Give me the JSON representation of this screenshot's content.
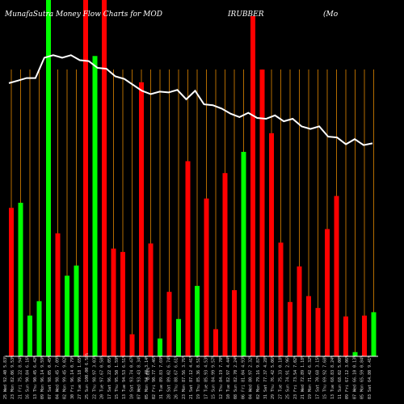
{
  "title_parts": [
    "MunafaSutra  Money Flow  Charts for MOD",
    "IRUBBER",
    "(Mo"
  ],
  "colors": {
    "background": "#000000",
    "up": "#00ff00",
    "down": "#ff0000",
    "grid": "#b36b00",
    "line": "#ffffff",
    "baseline": "#ffffff"
  },
  "chart_data": {
    "type": "bar",
    "title": "MunafaSutra  Money Flow  Charts for MOD IRUBBER (Mo",
    "x_tick_labels": [
      "25 Wed 92.40 5.83%",
      "23 Mon 82.06 9.53%",
      "21 Fri 75.22 8.94%",
      "16 Sun 90.84 6.16%",
      "13 Thu 90.45 6.42%",
      "09 Mon 96.14 9.59%",
      "07 Sat 98.05 0.45%",
      "04 Wed 98.45 7.09%",
      "02 Mon 99.45 9.02%",
      "30 Fri 96.14 0.79%",
      "27 Tue 99.18 1.65%",
      "25 Sun 100.00 6.58%",
      "22 Thu 98.97 3.03%",
      "20 Tue 97.67 0.58%",
      "17 Sat 96.22 0.05%",
      "15 Thu 95.50 1.59%",
      "13 Tue 94.53 6.51%",
      "10 Sat 93.74 0.47%",
      "07 Wed 93.43 8.34%",
      "05 Mon 94.48 3.14%",
      "02 Fri 90.77 7.46%",
      "31 Tue 89.83 7.69%",
      "28 Sat 89.02 6.74%",
      "26 Thu 88.67 6.61%",
      "23 Mon 87.56 3.76%",
      "21 Sat 87.12 4.41%",
      "19 Thu 85.36 8.51%",
      "17 Tue 85.93 4.53%",
      "15 Sun 84.99 9.57%",
      "12 Thu 84.19 7.70%",
      "10 Tue 82.97 4.44%",
      "08 Sun 82.70 2.24%",
      "06 Fri 81.04 4.93%",
      "04 Wed 80.97 2.32%",
      "02 Mon 79.16 9.87%",
      "31 Sat 77.37 4.28%",
      "29 Thu 76.42 5.06%",
      "27 Tue 75.33 0.18%",
      "25 Sun 74.91 2.96%",
      "23 Fri 73.54 7.02%",
      "21 Wed 72.89 1.18%",
      "19 Mon 71.42 6.32%",
      "17 Sat 70.68 3.15%",
      "15 Thu 69.92 7.68%",
      "13 Tue 68.83 8.24%",
      "11 Sun 68.02 5.00%",
      "09 Fri 67.12 3.06%",
      "07 Wed 66.10 0.13%",
      "05 Mon 65.59 0.84%",
      "03 Sat 64.80 9.41%"
    ],
    "extra_tick_label": "0.61%",
    "bars": [
      {
        "value": 175,
        "color": "red"
      },
      {
        "value": 181,
        "color": "green"
      },
      {
        "value": 48,
        "color": "green"
      },
      {
        "value": 65,
        "color": "green"
      },
      {
        "value": 420,
        "color": "green"
      },
      {
        "value": 145,
        "color": "red"
      },
      {
        "value": 95,
        "color": "green"
      },
      {
        "value": 107,
        "color": "green"
      },
      {
        "value": 420,
        "color": "red"
      },
      {
        "value": 354,
        "color": "green"
      },
      {
        "value": 420,
        "color": "red"
      },
      {
        "value": 127,
        "color": "red"
      },
      {
        "value": 123,
        "color": "red"
      },
      {
        "value": 26,
        "color": "red"
      },
      {
        "value": 323,
        "color": "red"
      },
      {
        "value": 133,
        "color": "red"
      },
      {
        "value": 21,
        "color": "green"
      },
      {
        "value": 76,
        "color": "red"
      },
      {
        "value": 44,
        "color": "green"
      },
      {
        "value": 230,
        "color": "red"
      },
      {
        "value": 83,
        "color": "green"
      },
      {
        "value": 186,
        "color": "red"
      },
      {
        "value": 32,
        "color": "red"
      },
      {
        "value": 216,
        "color": "red"
      },
      {
        "value": 78,
        "color": "red"
      },
      {
        "value": 241,
        "color": "green"
      },
      {
        "value": 401,
        "color": "red"
      },
      {
        "value": 338,
        "color": "red"
      },
      {
        "value": 263,
        "color": "red"
      },
      {
        "value": 134,
        "color": "red"
      },
      {
        "value": 64,
        "color": "red"
      },
      {
        "value": 106,
        "color": "red"
      },
      {
        "value": 71,
        "color": "red"
      },
      {
        "value": 57,
        "color": "red"
      },
      {
        "value": 150,
        "color": "red"
      },
      {
        "value": 189,
        "color": "red"
      },
      {
        "value": 47,
        "color": "red"
      },
      {
        "value": 5,
        "color": "green"
      },
      {
        "value": 48,
        "color": "red"
      },
      {
        "value": 52,
        "color": "green"
      }
    ],
    "line_values": [
      322,
      325,
      328,
      328,
      352,
      355,
      352,
      355,
      349,
      348,
      340,
      339,
      330,
      327,
      320,
      313,
      309,
      312,
      311,
      314,
      303,
      313,
      297,
      296,
      292,
      286,
      282,
      287,
      281,
      280,
      284,
      277,
      280,
      271,
      268,
      271,
      259,
      258,
      250,
      256,
      249,
      251
    ],
    "ylim": [
      0,
      420
    ],
    "grid": true,
    "series": []
  }
}
